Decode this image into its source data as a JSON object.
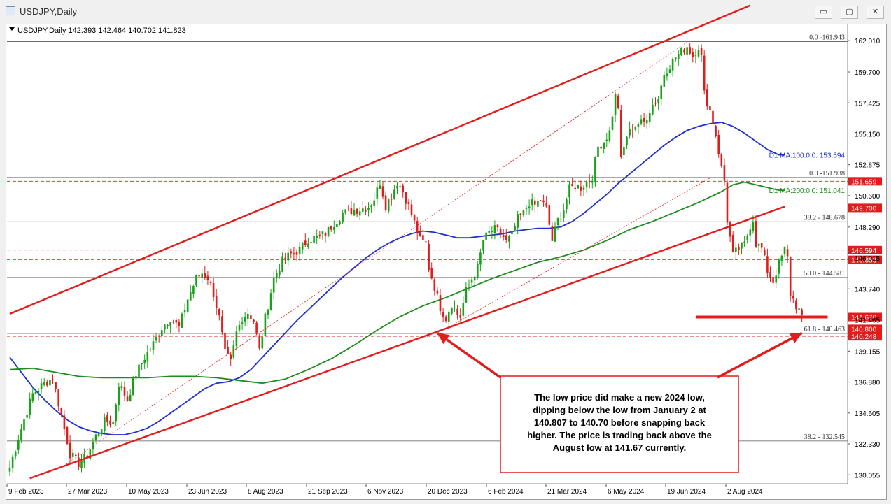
{
  "window": {
    "title": "USDJPY,Daily",
    "minimize_symbol": "▭",
    "maximize_symbol": "▢",
    "close_symbol": "✕"
  },
  "chart_header": "USDJPY,Daily  142.393 142.464 140.702 141.823",
  "chart_data": {
    "type": "candlestick",
    "symbol": "USDJPY",
    "timeframe": "Daily",
    "ohlc_header": {
      "open": 142.393,
      "high": 142.464,
      "low": 140.702,
      "close": 141.823
    },
    "y_ticks": [
      162.01,
      159.7,
      157.425,
      155.15,
      152.875,
      150.6,
      148.29,
      146.015,
      143.74,
      141.465,
      139.155,
      136.88,
      134.605,
      132.33,
      130.055
    ],
    "ylim": [
      129.4,
      163.2
    ],
    "x_ticks": [
      "9 Feb 2023",
      "27 Mar 2023",
      "10 May 2023",
      "23 Jun 2023",
      "8 Aug 2023",
      "21 Sep 2023",
      "6 Nov 2023",
      "20 Dec 2023",
      "6 Feb 2024",
      "21 Mar 2024",
      "6 May 2024",
      "19 Jun 2024",
      "2 Aug 2024"
    ],
    "price_path": [
      [
        0,
        130.6
      ],
      [
        4,
        133.5
      ],
      [
        8,
        136.0
      ],
      [
        12,
        136.8
      ],
      [
        15,
        137.2
      ],
      [
        18,
        134.4
      ],
      [
        21,
        131.6
      ],
      [
        24,
        130.9
      ],
      [
        27,
        131.5
      ],
      [
        30,
        132.9
      ],
      [
        33,
        134.0
      ],
      [
        36,
        133.9
      ],
      [
        38,
        136.8
      ],
      [
        41,
        135.6
      ],
      [
        44,
        137.5
      ],
      [
        47,
        138.7
      ],
      [
        50,
        139.7
      ],
      [
        53,
        140.9
      ],
      [
        56,
        141.6
      ],
      [
        59,
        140.9
      ],
      [
        62,
        143.0
      ],
      [
        65,
        144.5
      ],
      [
        67,
        144.9
      ],
      [
        69,
        144.6
      ],
      [
        71,
        143.4
      ],
      [
        73,
        141.6
      ],
      [
        75,
        139.0
      ],
      [
        77,
        138.3
      ],
      [
        79,
        140.5
      ],
      [
        81,
        141.6
      ],
      [
        83,
        142.0
      ],
      [
        85,
        141.4
      ],
      [
        87,
        139.2
      ],
      [
        89,
        141.6
      ],
      [
        92,
        144.5
      ],
      [
        95,
        145.8
      ],
      [
        98,
        146.3
      ],
      [
        101,
        146.6
      ],
      [
        104,
        147.4
      ],
      [
        107,
        147.5
      ],
      [
        110,
        147.8
      ],
      [
        113,
        148.6
      ],
      [
        116,
        149.3
      ],
      [
        119,
        149.5
      ],
      [
        122,
        149.6
      ],
      [
        125,
        149.8
      ],
      [
        127,
        150.4
      ],
      [
        129,
        151.6
      ],
      [
        131,
        149.9
      ],
      [
        133,
        150.6
      ],
      [
        135,
        151.6
      ],
      [
        137,
        150.9
      ],
      [
        139,
        149.8
      ],
      [
        141,
        148.6
      ],
      [
        143,
        147.3
      ],
      [
        145,
        147.1
      ],
      [
        146,
        145.3
      ],
      [
        148,
        143.9
      ],
      [
        150,
        142.4
      ],
      [
        152,
        141.6
      ],
      [
        154,
        142.7
      ],
      [
        156,
        141.9
      ],
      [
        157,
        141.7
      ],
      [
        159,
        143.6
      ],
      [
        161,
        144.5
      ],
      [
        163,
        145.3
      ],
      [
        165,
        147.3
      ],
      [
        167,
        147.9
      ],
      [
        169,
        148.1
      ],
      [
        171,
        147.9
      ],
      [
        173,
        147.2
      ],
      [
        175,
        147.7
      ],
      [
        177,
        148.9
      ],
      [
        179,
        149.3
      ],
      [
        181,
        150.1
      ],
      [
        183,
        149.9
      ],
      [
        185,
        150.3
      ],
      [
        187,
        149.6
      ],
      [
        189,
        147.3
      ],
      [
        191,
        148.8
      ],
      [
        193,
        149.6
      ],
      [
        195,
        151.1
      ],
      [
        197,
        151.3
      ],
      [
        199,
        151.2
      ],
      [
        201,
        151.6
      ],
      [
        203,
        152.0
      ],
      [
        205,
        154.2
      ],
      [
        207,
        154.6
      ],
      [
        209,
        155.3
      ],
      [
        211,
        157.9
      ],
      [
        212,
        157.2
      ],
      [
        213,
        153.2
      ],
      [
        215,
        155.0
      ],
      [
        217,
        155.6
      ],
      [
        219,
        155.9
      ],
      [
        221,
        156.0
      ],
      [
        223,
        156.9
      ],
      [
        224,
        157.3
      ],
      [
        226,
        157.8
      ],
      [
        228,
        159.6
      ],
      [
        230,
        160.2
      ],
      [
        232,
        160.8
      ],
      [
        234,
        161.2
      ],
      [
        236,
        161.6
      ],
      [
        238,
        160.9
      ],
      [
        240,
        161.6
      ],
      [
        241,
        160.8
      ],
      [
        242,
        158.1
      ],
      [
        244,
        156.9
      ],
      [
        246,
        155.1
      ],
      [
        248,
        152.6
      ],
      [
        249,
        151.7
      ],
      [
        250,
        148.8
      ],
      [
        252,
        146.2
      ],
      [
        254,
        146.7
      ],
      [
        256,
        147.0
      ],
      [
        258,
        148.4
      ],
      [
        259,
        148.9
      ],
      [
        260,
        147.1
      ],
      [
        262,
        146.7
      ],
      [
        264,
        145.1
      ],
      [
        266,
        144.3
      ],
      [
        268,
        145.6
      ],
      [
        270,
        146.6
      ],
      [
        271,
        146.0
      ],
      [
        272,
        143.4
      ],
      [
        274,
        142.5
      ],
      [
        276,
        141.8
      ]
    ],
    "moving_averages": [
      {
        "name": "D1 MA:100:0:0: 153.594",
        "color": "#1f2fd0",
        "points": [
          [
            0,
            138.7
          ],
          [
            4,
            137.6
          ],
          [
            8,
            136.5
          ],
          [
            12,
            135.6
          ],
          [
            16,
            134.8
          ],
          [
            20,
            134.1
          ],
          [
            24,
            133.6
          ],
          [
            28,
            133.3
          ],
          [
            32,
            133.1
          ],
          [
            36,
            133.0
          ],
          [
            40,
            133.0
          ],
          [
            44,
            133.2
          ],
          [
            48,
            133.5
          ],
          [
            52,
            134.0
          ],
          [
            56,
            134.6
          ],
          [
            60,
            135.2
          ],
          [
            64,
            135.8
          ],
          [
            68,
            136.4
          ],
          [
            72,
            136.8
          ],
          [
            76,
            136.9
          ],
          [
            80,
            137.2
          ],
          [
            84,
            137.8
          ],
          [
            88,
            138.7
          ],
          [
            92,
            139.6
          ],
          [
            96,
            140.5
          ],
          [
            100,
            141.4
          ],
          [
            104,
            142.2
          ],
          [
            108,
            143.0
          ],
          [
            112,
            143.8
          ],
          [
            116,
            144.6
          ],
          [
            120,
            145.3
          ],
          [
            124,
            146.0
          ],
          [
            128,
            146.6
          ],
          [
            132,
            147.1
          ],
          [
            136,
            147.5
          ],
          [
            140,
            147.8
          ],
          [
            144,
            148.0
          ],
          [
            148,
            147.9
          ],
          [
            152,
            147.7
          ],
          [
            156,
            147.5
          ],
          [
            160,
            147.5
          ],
          [
            164,
            147.6
          ],
          [
            168,
            147.7
          ],
          [
            172,
            147.8
          ],
          [
            176,
            148.0
          ],
          [
            180,
            148.1
          ],
          [
            184,
            148.2
          ],
          [
            188,
            148.2
          ],
          [
            192,
            148.3
          ],
          [
            196,
            148.7
          ],
          [
            200,
            149.3
          ],
          [
            204,
            150.0
          ],
          [
            208,
            150.7
          ],
          [
            212,
            151.5
          ],
          [
            216,
            152.2
          ],
          [
            220,
            152.9
          ],
          [
            224,
            153.6
          ],
          [
            228,
            154.3
          ],
          [
            232,
            154.9
          ],
          [
            236,
            155.4
          ],
          [
            240,
            155.7
          ],
          [
            244,
            155.9
          ],
          [
            248,
            156.0
          ],
          [
            252,
            155.7
          ],
          [
            256,
            155.2
          ],
          [
            260,
            154.6
          ],
          [
            264,
            154.0
          ],
          [
            268,
            153.6
          ],
          [
            270,
            153.6
          ]
        ]
      },
      {
        "name": "D1 MA:200:0:0: 151.041",
        "color": "#1e8c1e",
        "points": [
          [
            0,
            137.8
          ],
          [
            8,
            137.9
          ],
          [
            16,
            137.6
          ],
          [
            24,
            137.3
          ],
          [
            32,
            137.2
          ],
          [
            40,
            137.2
          ],
          [
            48,
            137.2
          ],
          [
            56,
            137.3
          ],
          [
            64,
            137.3
          ],
          [
            72,
            137.2
          ],
          [
            80,
            137.0
          ],
          [
            88,
            136.8
          ],
          [
            96,
            137.1
          ],
          [
            104,
            137.8
          ],
          [
            112,
            138.6
          ],
          [
            120,
            139.6
          ],
          [
            128,
            140.7
          ],
          [
            136,
            141.7
          ],
          [
            144,
            142.5
          ],
          [
            152,
            143.1
          ],
          [
            160,
            143.8
          ],
          [
            168,
            144.5
          ],
          [
            176,
            145.1
          ],
          [
            184,
            145.7
          ],
          [
            192,
            146.1
          ],
          [
            200,
            146.6
          ],
          [
            208,
            147.3
          ],
          [
            216,
            148.1
          ],
          [
            224,
            148.7
          ],
          [
            232,
            149.4
          ],
          [
            240,
            150.1
          ],
          [
            248,
            150.9
          ],
          [
            252,
            151.4
          ],
          [
            256,
            151.6
          ],
          [
            260,
            151.4
          ],
          [
            264,
            151.2
          ],
          [
            268,
            151.0
          ],
          [
            270,
            151.0
          ]
        ]
      }
    ],
    "channel_lines": [
      {
        "from": [
          0,
          141.9
        ],
        "to": [
          258,
          164.6
        ]
      },
      {
        "from": [
          7,
          129.8
        ],
        "to": [
          270,
          149.8
        ]
      }
    ],
    "fib_levels": [
      {
        "label": "0.0 -161.943",
        "value": 161.943
      },
      {
        "label": "0.0 -151.938",
        "value": 151.938
      },
      {
        "label": "38.2 - 148.678",
        "value": 148.678
      },
      {
        "label": "50.0 - 144.581",
        "value": 144.581
      },
      {
        "label": "61.8 - 140.463",
        "value": 140.463
      },
      {
        "label": "38.2 - 132.545",
        "value": 132.545
      }
    ],
    "price_markers": [
      {
        "label": "151.659",
        "value": 151.659
      },
      {
        "label": "149.700",
        "value": 149.7
      },
      {
        "label": "146.594",
        "value": 146.594
      },
      {
        "label": "145.883",
        "value": 145.883
      },
      {
        "label": "141.670",
        "value": 141.67
      },
      {
        "label": "140.800",
        "value": 140.8
      },
      {
        "label": "140.248",
        "value": 140.248
      }
    ],
    "august_low_line": {
      "value": 141.67,
      "from_x": 239,
      "to_x": 285
    },
    "annotation": "The low price did make a new 2024 low, dipping below the low from January 2 at 140.807 to 140.70 before snapping back higher. The price is trading back above the August low at 141.67 currently.",
    "arrows": [
      {
        "target": [
          149,
          140.8
        ]
      },
      {
        "target": [
          276,
          140.8
        ]
      }
    ],
    "colors": {
      "candle_up": "#17a317",
      "candle_down": "#e21b1b",
      "trend": "#e31b1b",
      "fib": "#333333"
    }
  }
}
